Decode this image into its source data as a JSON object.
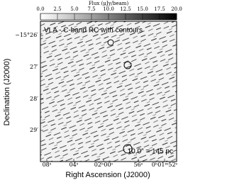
{
  "chart_data": {
    "type": "image",
    "colorbar": {
      "label": "Flux (μJy/beam)",
      "xlim": [
        0,
        20
      ],
      "colors": [
        "#ffffff",
        "#000000"
      ],
      "xticks": [
        {
          "value": 0,
          "label": "0.0"
        },
        {
          "value": 2.5,
          "label": "2.5"
        },
        {
          "value": 5,
          "label": "5.0"
        },
        {
          "value": 7.5,
          "label": "7.5"
        },
        {
          "value": 10,
          "label": "10.0"
        },
        {
          "value": 12.5,
          "label": "12.5"
        },
        {
          "value": 15,
          "label": "15.0"
        },
        {
          "value": 17.5,
          "label": "17.5"
        },
        {
          "value": 20,
          "label": "20.0"
        }
      ]
    },
    "annotation": "VLA - C-band RC with contours",
    "scale_label": "10.0″ = 145 pc",
    "x_label": "Right Ascension (J2000)",
    "y_label": "Declination (J2000)",
    "x_categories": [
      "08ˢ",
      "04ˢ",
      "02ʰ00ˢ",
      "56ˢ",
      "0ʰ01ᵐ52ˢ"
    ],
    "y_categories": [
      "−15°26′",
      "27′",
      "28′",
      "29′"
    ]
  }
}
